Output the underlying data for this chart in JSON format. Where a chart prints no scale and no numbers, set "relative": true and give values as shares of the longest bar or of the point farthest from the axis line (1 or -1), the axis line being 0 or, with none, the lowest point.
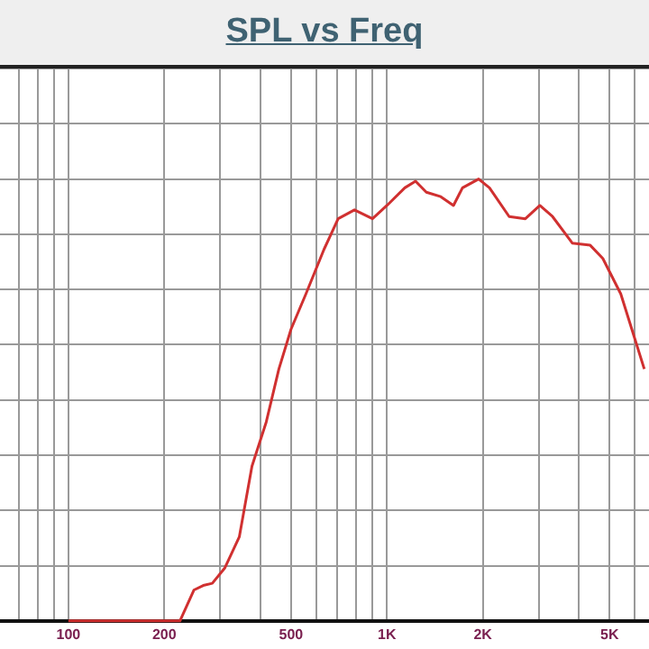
{
  "chart_data": {
    "type": "line",
    "title": "SPL vs Freq",
    "relative": true,
    "log": "x",
    "grid": true,
    "legend": false,
    "marker": "none",
    "line_style": "solid",
    "xlim": [
      61,
      6650
    ],
    "xticks": [
      {
        "value": 70,
        "label": null
      },
      {
        "value": 80,
        "label": null
      },
      {
        "value": 90,
        "label": null
      },
      100,
      200,
      {
        "value": 300,
        "label": null
      },
      {
        "value": 400,
        "label": null
      },
      500,
      {
        "value": 600,
        "label": null
      },
      {
        "value": 700,
        "label": null
      },
      {
        "value": 800,
        "label": null
      },
      {
        "value": 900,
        "label": null
      },
      {
        "value": 1000,
        "label": "1K"
      },
      {
        "value": 2000,
        "label": "2K"
      },
      {
        "value": 3000,
        "label": null
      },
      {
        "value": 4000,
        "label": null
      },
      {
        "value": 5000,
        "label": "5K"
      },
      {
        "value": 6000,
        "label": null
      }
    ],
    "series": [
      {
        "color": "#d03030",
        "x": [
          100,
          224,
          248,
          265,
          283,
          310,
          344,
          377,
          418,
          458,
          500,
          557,
          634,
          703,
          791,
          901,
          1000,
          1138,
          1230,
          1330,
          1476,
          1618,
          1727,
          1941,
          2099,
          2420,
          2721,
          3021,
          3311,
          3819,
          4348,
          4763,
          5422,
          6427
        ],
        "values": [
          0,
          0,
          0.07,
          0.08,
          0.085,
          0.12,
          0.19,
          0.35,
          0.45,
          0.57,
          0.66,
          0.74,
          0.84,
          0.91,
          0.93,
          0.91,
          0.94,
          0.98,
          0.995,
          0.97,
          0.96,
          0.94,
          0.98,
          1,
          0.98,
          0.915,
          0.91,
          0.94,
          0.915,
          0.855,
          0.85,
          0.82,
          0.74,
          0.57
        ]
      }
    ]
  }
}
